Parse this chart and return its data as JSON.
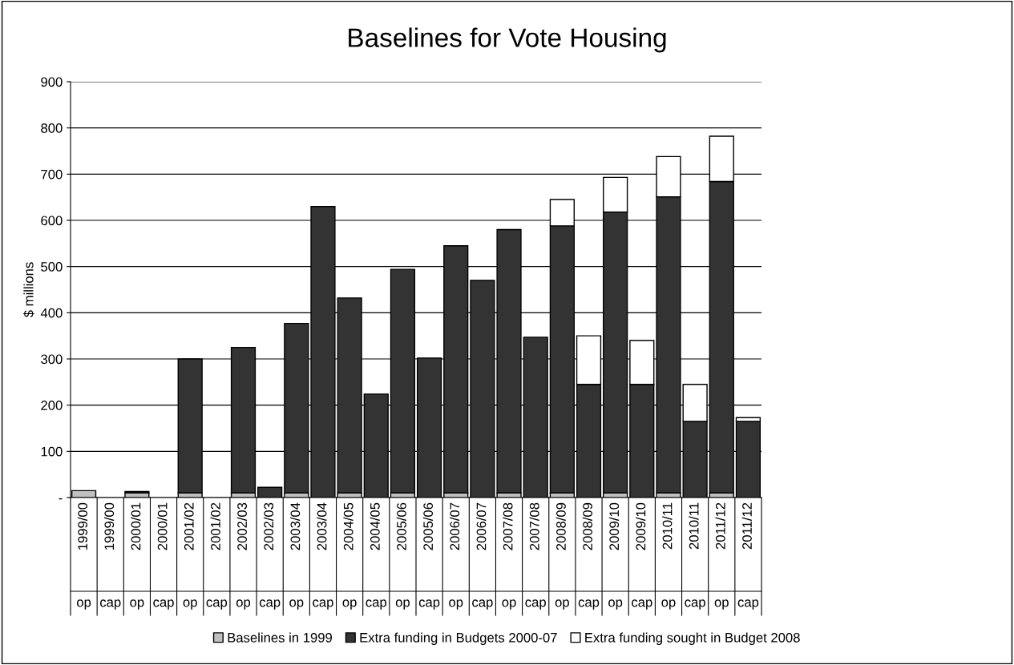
{
  "chart_data": {
    "type": "bar",
    "title": "Baselines for Vote Housing",
    "ylabel": "$ millions",
    "categories": [
      "1999/00\nop",
      "1999/00\ncap",
      "2000/01\nop",
      "2000/01\ncap",
      "2001/02\nop",
      "2001/02\ncap",
      "2002/03\nop",
      "2002/03\ncap",
      "2003/04\nop",
      "2003/04\ncap",
      "2004/05\nop",
      "2004/05\ncap",
      "2005/06\nop",
      "2005/06\ncap",
      "2006/07\nop",
      "2006/07\ncap",
      "2007/08\nop",
      "2007/08\ncap",
      "2008/09\nop",
      "2008/09\ncap",
      "2009/10\nop",
      "2009/10\ncap",
      "2010/11\nop",
      "2010/11\ncap",
      "2011/12\nop",
      "2011/12\ncap"
    ],
    "stacked": true,
    "series": [
      {
        "name": "Baselines in 1999",
        "color": "#c0c0c0",
        "values": [
          15,
          null,
          10,
          null,
          10,
          null,
          10,
          null,
          10,
          null,
          10,
          null,
          10,
          null,
          10,
          null,
          10,
          null,
          10,
          null,
          10,
          null,
          10,
          null,
          10,
          null
        ]
      },
      {
        "name": "Extra funding in Budgets 2000-07",
        "color": "#333333",
        "values": [
          null,
          null,
          3,
          null,
          290,
          null,
          315,
          22,
          367,
          630,
          422,
          224,
          484,
          302,
          535,
          470,
          570,
          347,
          578,
          245,
          608,
          245,
          641,
          165,
          674,
          165
        ]
      },
      {
        "name": "Extra funding sought in Budget 2008",
        "color": "#ffffff",
        "values": [
          null,
          null,
          null,
          null,
          null,
          null,
          null,
          null,
          null,
          null,
          null,
          null,
          null,
          null,
          null,
          null,
          null,
          null,
          57,
          105,
          75,
          95,
          87,
          80,
          98,
          8
        ]
      }
    ],
    "ylim": [
      0,
      900
    ],
    "yticks": [
      {
        "value": 0,
        "label": "-"
      },
      100,
      200,
      300,
      400,
      500,
      600,
      700,
      800,
      900
    ],
    "grid": "y",
    "legend": "bottom"
  }
}
